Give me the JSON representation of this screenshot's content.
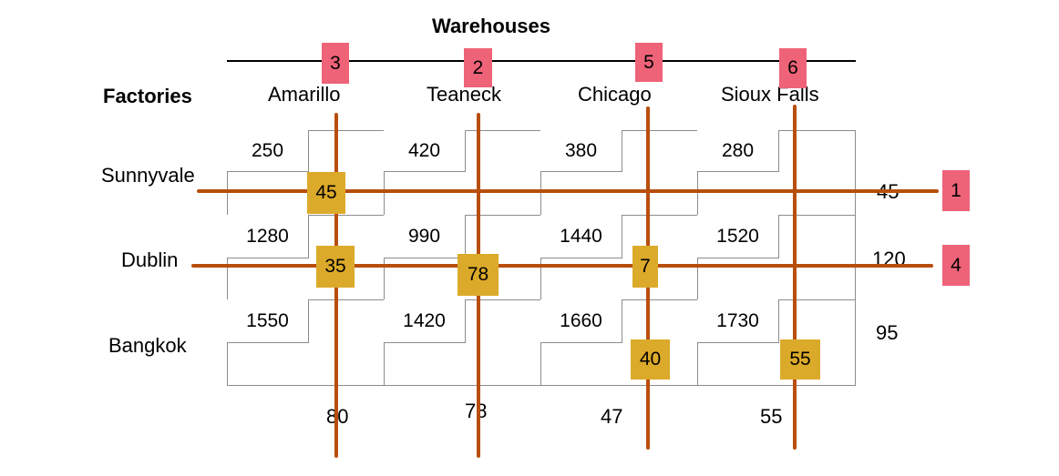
{
  "title": "Warehouses",
  "row_header": "Factories",
  "warehouses": [
    "Amarillo",
    "Teaneck",
    "Chicago",
    "Sioux Falls"
  ],
  "factories": [
    "Sunnyvale",
    "Dublin",
    "Bangkok"
  ],
  "costs": [
    [
      "250",
      "420",
      "380",
      "280"
    ],
    [
      "1280",
      "990",
      "1440",
      "1520"
    ],
    [
      "1550",
      "1420",
      "1660",
      "1730"
    ]
  ],
  "supply": [
    "45",
    "120",
    "95"
  ],
  "demand": [
    "80",
    "78",
    "47",
    "55"
  ],
  "allocations": {
    "sunnyvale_amarillo": "45",
    "dublin_amarillo": "35",
    "dublin_teaneck": "78",
    "dublin_chicago": "7",
    "bangkok_chicago": "40",
    "bangkok_siouxfalls": "55"
  },
  "order_labels": {
    "amarillo": "3",
    "teaneck": "2",
    "chicago": "5",
    "siouxfalls": "6",
    "sunnyvale": "1",
    "dublin": "4"
  },
  "colors": {
    "line": "#b84e0c",
    "allocation": "#dcaa2a",
    "order": "#ee6378"
  }
}
